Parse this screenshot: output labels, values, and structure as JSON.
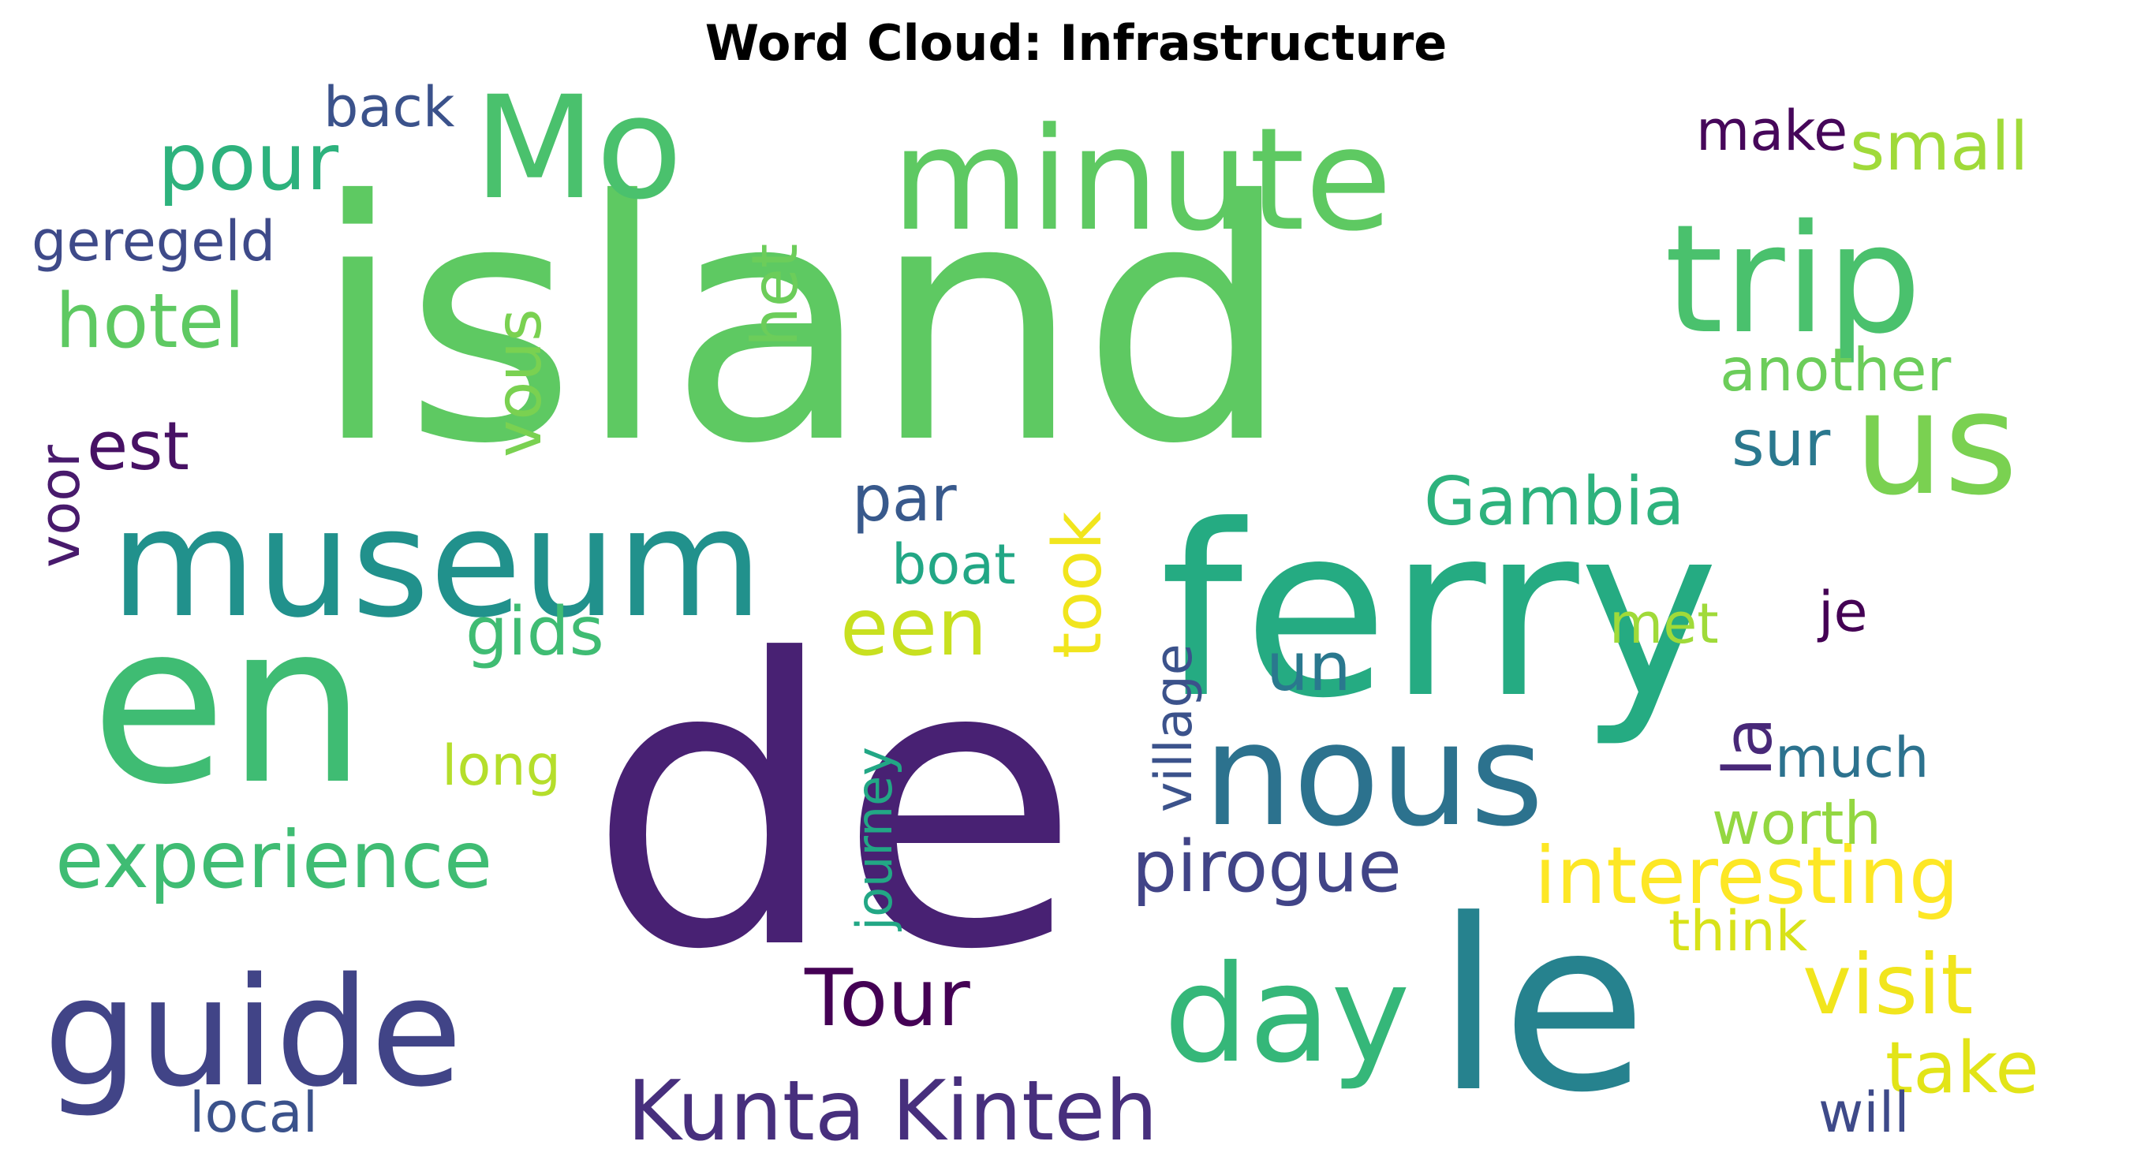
{
  "title": "Word Cloud: Infrastructure",
  "words": [
    {
      "text": "island",
      "color": "#5ec962"
    },
    {
      "text": "de",
      "color": "#482173"
    },
    {
      "text": "ferry",
      "color": "#25ab82"
    },
    {
      "text": "en",
      "color": "#3fbc73"
    },
    {
      "text": "le",
      "color": "#26828e"
    },
    {
      "text": "museum",
      "color": "#21918c"
    },
    {
      "text": "minute",
      "color": "#5ec962"
    },
    {
      "text": "trip",
      "color": "#4ac16d"
    },
    {
      "text": "guide",
      "color": "#414487"
    },
    {
      "text": "nous",
      "color": "#2c728e"
    },
    {
      "text": "day",
      "color": "#35b779"
    },
    {
      "text": "Mo",
      "color": "#4ac16d"
    },
    {
      "text": "us",
      "color": "#7ad151"
    },
    {
      "text": "Kunta Kinteh",
      "color": "#472f7d"
    },
    {
      "text": "interesting",
      "color": "#fde725"
    },
    {
      "text": "visit",
      "color": "#f1e51d"
    },
    {
      "text": "experience",
      "color": "#3fbc73"
    },
    {
      "text": "Tour",
      "color": "#440154"
    },
    {
      "text": "pirogue",
      "color": "#414487"
    },
    {
      "text": "Gambia",
      "color": "#2db27d"
    },
    {
      "text": "hotel",
      "color": "#5ec962"
    },
    {
      "text": "pour",
      "color": "#2db27d"
    },
    {
      "text": "small",
      "color": "#a0da39"
    },
    {
      "text": "another",
      "color": "#6ccd5a"
    },
    {
      "text": "take",
      "color": "#e2e418"
    },
    {
      "text": "een",
      "color": "#c8e020"
    },
    {
      "text": "took",
      "color": "#f1e51d"
    },
    {
      "text": "gids",
      "color": "#3fbc73"
    },
    {
      "text": "est",
      "color": "#471164"
    },
    {
      "text": "par",
      "color": "#38598c"
    },
    {
      "text": "sur",
      "color": "#2a788e"
    },
    {
      "text": "vous",
      "color": "#7ad151"
    },
    {
      "text": "het",
      "color": "#6ccd5a"
    },
    {
      "text": "back",
      "color": "#3b528b"
    },
    {
      "text": "make",
      "color": "#46075a"
    },
    {
      "text": "geregeld",
      "color": "#3e4a89"
    },
    {
      "text": "voor",
      "color": "#481a6c"
    },
    {
      "text": "boat",
      "color": "#22a785"
    },
    {
      "text": "long",
      "color": "#b5de2b"
    },
    {
      "text": "un",
      "color": "#2a788e"
    },
    {
      "text": "met",
      "color": "#a0da39"
    },
    {
      "text": "je",
      "color": "#440154"
    },
    {
      "text": "la",
      "color": "#482878"
    },
    {
      "text": "much",
      "color": "#2c728e"
    },
    {
      "text": "worth",
      "color": "#93d741"
    },
    {
      "text": "think",
      "color": "#d8e219"
    },
    {
      "text": "village",
      "color": "#3b528b"
    },
    {
      "text": "journey",
      "color": "#22a785"
    },
    {
      "text": "local",
      "color": "#3b528b"
    },
    {
      "text": "will",
      "color": "#3e4a89"
    }
  ]
}
